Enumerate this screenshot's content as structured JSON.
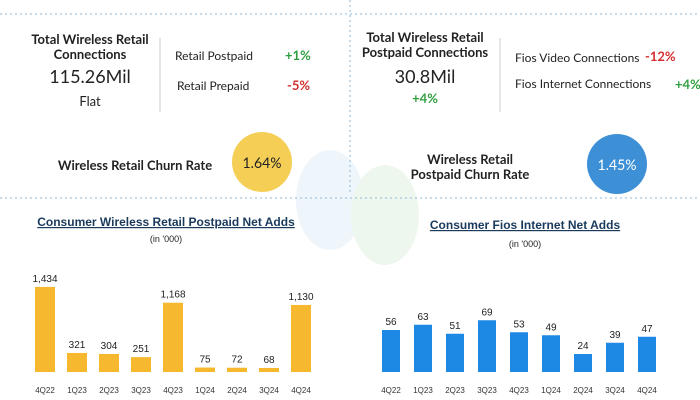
{
  "left_panel": {
    "kpi_title": "Total Wireless Retail Connections",
    "kpi_value": "115.26Mil",
    "kpi_change": "Flat",
    "rows": [
      {
        "label": "Retail Postpaid",
        "change": "+1%"
      },
      {
        "label": "Retail Prepaid",
        "change": "-5%"
      }
    ],
    "churn_label": "Wireless Retail Churn Rate",
    "churn_value": "1.64%"
  },
  "right_panel": {
    "kpi_title": "Total Wireless Retail Postpaid Connections",
    "kpi_value": "30.8Mil",
    "kpi_change": "+4%",
    "rows": [
      {
        "label": "Fios Video Connections",
        "change": "-12%"
      },
      {
        "label": "Fios Internet Connections",
        "change": "+4%"
      }
    ],
    "churn_label": "Wireless Retail Postpaid Churn Rate",
    "churn_value": "1.45%"
  },
  "chart_data": [
    {
      "type": "bar",
      "title": "Consumer Wireless Retail Postpaid Net Adds",
      "subtitle": "(in '000)",
      "categories": [
        "4Q22",
        "1Q23",
        "2Q23",
        "3Q23",
        "4Q23",
        "1Q24",
        "2Q24",
        "3Q24",
        "4Q24"
      ],
      "values": [
        1434,
        321,
        304,
        251,
        1168,
        75,
        72,
        68,
        1130
      ],
      "value_labels": [
        "1,434",
        "321",
        "304",
        "251",
        "1,168",
        "75",
        "72",
        "68",
        "1,130"
      ],
      "color": "#f5b82e",
      "ylim": [
        0,
        1500
      ]
    },
    {
      "type": "bar",
      "title": "Consumer Fios Internet Net Adds",
      "subtitle": "(in '000)",
      "categories": [
        "4Q22",
        "1Q23",
        "2Q23",
        "3Q23",
        "4Q23",
        "1Q24",
        "2Q24",
        "3Q24",
        "4Q24"
      ],
      "values": [
        56,
        63,
        51,
        69,
        53,
        49,
        24,
        39,
        47
      ],
      "color": "#1e88e5",
      "ylim": [
        0,
        100
      ]
    }
  ]
}
